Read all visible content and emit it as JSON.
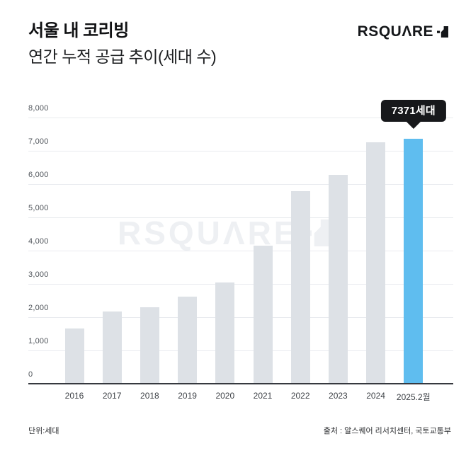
{
  "header": {
    "title": "서울 내 코리빙",
    "subtitle": "연간 누적 공급 추이(세대 수)",
    "logo_text": "RSQUARE"
  },
  "chart_data": {
    "type": "bar",
    "title": "서울 내 코리빙 연간 누적 공급 추이(세대 수)",
    "categories": [
      "2016",
      "2017",
      "2018",
      "2019",
      "2020",
      "2021",
      "2022",
      "2023",
      "2024",
      "2025.2월"
    ],
    "values": [
      1670,
      2170,
      2300,
      2620,
      3050,
      4150,
      5780,
      6280,
      7260,
      7371
    ],
    "highlight_index": 9,
    "highlight_label": "7371세대",
    "y_ticks": [
      {
        "label": "8,000",
        "value": 8000
      },
      {
        "label": "7,000",
        "value": 7000
      },
      {
        "label": "6,000",
        "value": 6000
      },
      {
        "label": "5,000",
        "value": 5000
      },
      {
        "label": "4,000",
        "value": 4000
      },
      {
        "label": "3,000",
        "value": 3000
      },
      {
        "label": "2,000",
        "value": 2000
      },
      {
        "label": "1,000",
        "value": 1000
      },
      {
        "label": "0",
        "value": 0
      }
    ],
    "ylim": [
      0,
      8000
    ],
    "grid": true,
    "legend": "none",
    "bar_color": "#dde1e6",
    "highlight_color": "#5fbdef",
    "watermark_text": "RSQUARE"
  },
  "footer": {
    "unit": "단위:세대",
    "source": "출처 : 알스퀘어 리서치센터, 국토교통부"
  }
}
